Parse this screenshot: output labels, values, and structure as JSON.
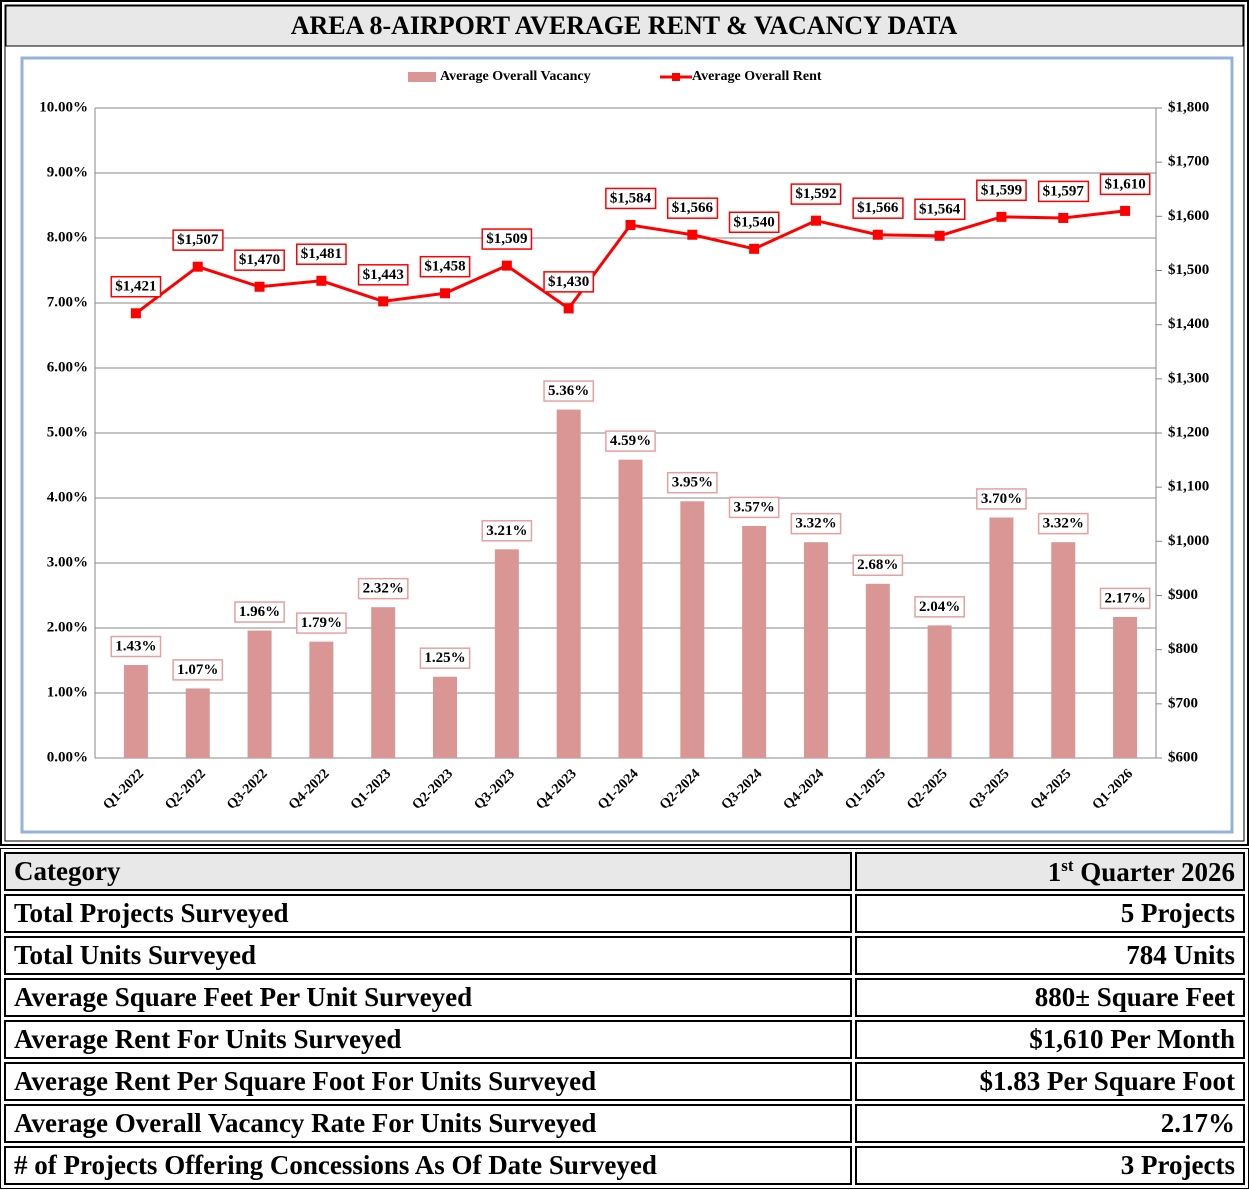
{
  "chart_data": {
    "type": "combo",
    "title": "AREA 8-AIRPORT AVERAGE RENT & VACANCY DATA",
    "categories": [
      "Q1-2022",
      "Q2-2022",
      "Q3-2022",
      "Q4-2022",
      "Q1-2023",
      "Q2-2023",
      "Q3-2023",
      "Q4-2023",
      "Q1-2024",
      "Q2-2024",
      "Q3-2024",
      "Q4-2024",
      "Q1-2025",
      "Q2-2025",
      "Q3-2025",
      "Q4-2025",
      "Q1-2026"
    ],
    "series": [
      {
        "name": "Average Overall Vacancy",
        "type": "bar",
        "color": "#d99694",
        "values": [
          1.43,
          1.07,
          1.96,
          1.79,
          2.32,
          1.25,
          3.21,
          5.36,
          4.59,
          3.95,
          3.57,
          3.32,
          2.68,
          2.04,
          3.7,
          3.32,
          2.17
        ],
        "value_labels": [
          "1.43%",
          "1.07%",
          "1.96%",
          "1.79%",
          "2.32%",
          "1.25%",
          "3.21%",
          "5.36%",
          "4.59%",
          "3.95%",
          "3.57%",
          "3.32%",
          "2.68%",
          "2.04%",
          "3.70%",
          "3.32%",
          "2.17%"
        ]
      },
      {
        "name": "Average Overall Rent",
        "type": "line",
        "color": "#ff0000",
        "axis": "y2",
        "values": [
          1421,
          1507,
          1470,
          1481,
          1443,
          1458,
          1509,
          1430,
          1584,
          1566,
          1540,
          1592,
          1566,
          1564,
          1599,
          1597,
          1610
        ],
        "value_labels": [
          "$1,421",
          "$1,507",
          "$1,470",
          "$1,481",
          "$1,443",
          "$1,458",
          "$1,509",
          "$1,430",
          "$1,584",
          "$1,566",
          "$1,540",
          "$1,592",
          "$1,566",
          "$1,564",
          "$1,599",
          "$1,597",
          "$1,610"
        ]
      }
    ],
    "ylim": [
      0,
      10
    ],
    "yticks": [
      {
        "value": 0,
        "label": "0.00%"
      },
      {
        "value": 1,
        "label": "1.00%"
      },
      {
        "value": 2,
        "label": "2.00%"
      },
      {
        "value": 3,
        "label": "3.00%"
      },
      {
        "value": 4,
        "label": "4.00%"
      },
      {
        "value": 5,
        "label": "5.00%"
      },
      {
        "value": 6,
        "label": "6.00%"
      },
      {
        "value": 7,
        "label": "7.00%"
      },
      {
        "value": 8,
        "label": "8.00%"
      },
      {
        "value": 9,
        "label": "9.00%"
      },
      {
        "value": 10,
        "label": "10.00%"
      }
    ],
    "y2lim": [
      600,
      1800
    ],
    "y2ticks": [
      {
        "value": 600,
        "label": "$600"
      },
      {
        "value": 700,
        "label": "$700"
      },
      {
        "value": 800,
        "label": "$800"
      },
      {
        "value": 900,
        "label": "$900"
      },
      {
        "value": 1000,
        "label": "$1,000"
      },
      {
        "value": 1100,
        "label": "$1,100"
      },
      {
        "value": 1200,
        "label": "$1,200"
      },
      {
        "value": 1300,
        "label": "$1,300"
      },
      {
        "value": 1400,
        "label": "$1,400"
      },
      {
        "value": 1500,
        "label": "$1,500"
      },
      {
        "value": 1600,
        "label": "$1,600"
      },
      {
        "value": 1700,
        "label": "$1,700"
      },
      {
        "value": 1800,
        "label": "$1,800"
      }
    ],
    "grid": true,
    "legend": "top"
  },
  "table": {
    "header": [
      "Category",
      {
        "ordinal": "1",
        "suffix": "st",
        "text": "Quarter 2026"
      }
    ],
    "rows": [
      [
        "Total Projects Surveyed",
        "5 Projects"
      ],
      [
        "Total Units Surveyed",
        "784 Units"
      ],
      [
        "Average Square Feet Per Unit Surveyed",
        "880± Square Feet"
      ],
      [
        "Average Rent For Units Surveyed",
        "$1,610 Per Month"
      ],
      [
        "Average Rent Per Square Foot For Units Surveyed",
        "$1.83 Per Square Foot"
      ],
      [
        "Average Overall Vacancy Rate For Units Surveyed",
        "2.17%"
      ],
      [
        "# of Projects Offering Concessions As Of Date Surveyed",
        "3 Projects"
      ]
    ]
  }
}
